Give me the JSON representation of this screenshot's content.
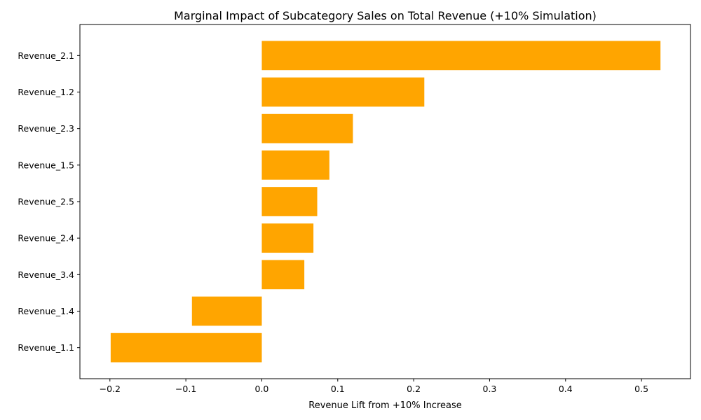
{
  "chart_data": {
    "type": "bar",
    "orientation": "horizontal",
    "title": "Marginal Impact of Subcategory Sales on Total Revenue (+10% Simulation)",
    "xlabel": "Revenue Lift from +10% Increase",
    "ylabel": "",
    "categories": [
      "Revenue_2.1",
      "Revenue_1.2",
      "Revenue_2.3",
      "Revenue_1.5",
      "Revenue_2.5",
      "Revenue_2.4",
      "Revenue_3.4",
      "Revenue_1.4",
      "Revenue_1.1"
    ],
    "values": [
      0.525,
      0.214,
      0.12,
      0.089,
      0.073,
      0.068,
      0.056,
      -0.092,
      -0.199
    ],
    "xlim": [
      -0.2395,
      0.5645
    ],
    "xticks": [
      -0.2,
      -0.1,
      0.0,
      0.1,
      0.2,
      0.3,
      0.4,
      0.5
    ],
    "xtick_labels": [
      "−0.2",
      "−0.1",
      "0.0",
      "0.1",
      "0.2",
      "0.3",
      "0.4",
      "0.5"
    ],
    "bar_color": "#ffa500",
    "grid": false,
    "legend": false
  }
}
